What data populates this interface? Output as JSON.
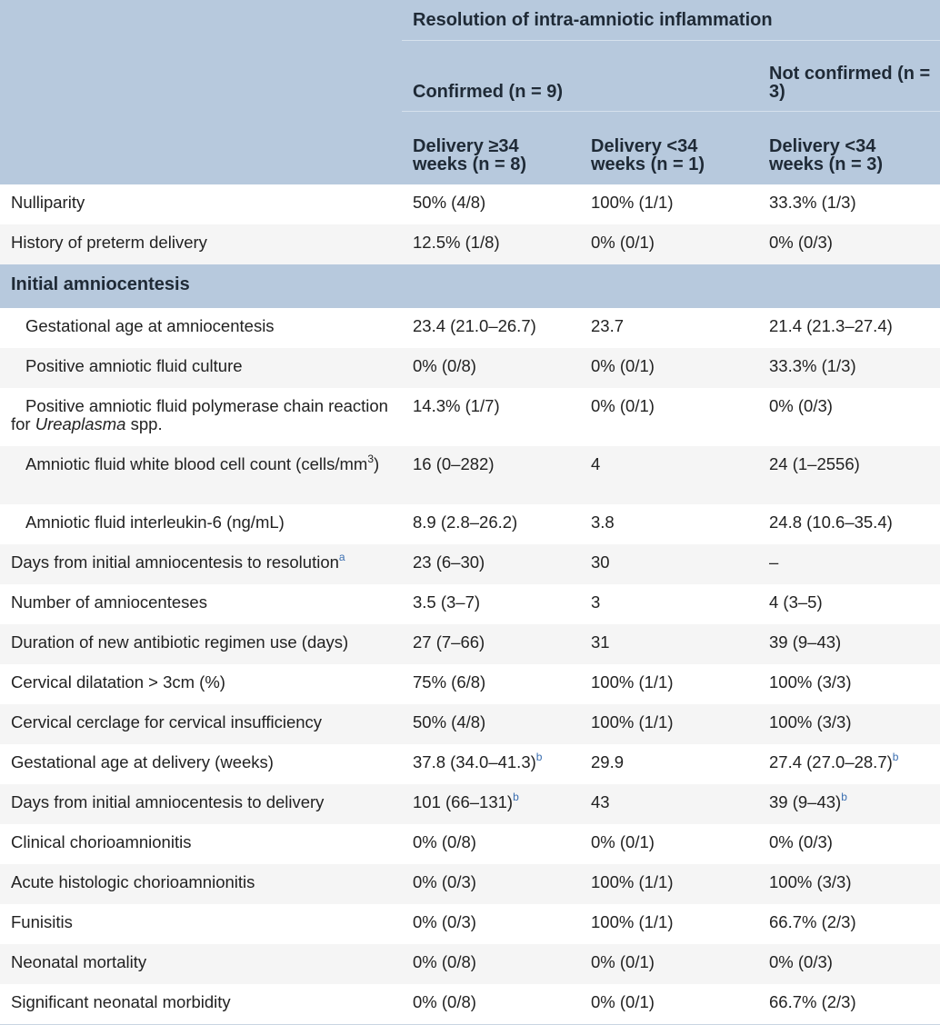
{
  "header": {
    "group_title": "Resolution of intra-amniotic inflammation",
    "confirmed_label": "Confirmed (n = 9)",
    "not_confirmed_label": "Not confirmed (n = 3)",
    "col1_label": "Delivery ≥34 weeks (n = 8)",
    "col2_label": "Delivery <34 weeks (n = 1)",
    "col3_label": "Delivery <34 weeks (n = 3)"
  },
  "rows": [
    {
      "label": "Nulliparity",
      "c1": "50% (4/8)",
      "c2": "100% (1/1)",
      "c3": "33.3% (1/3)"
    },
    {
      "label": "History of preterm delivery",
      "c1": "12.5% (1/8)",
      "c2": "0% (0/1)",
      "c3": "0% (0/3)"
    },
    {
      "section": "Initial amniocentesis"
    },
    {
      "label": "Gestational age at amniocentesis",
      "c1": "23.4 (21.0–26.7)",
      "c2": "23.7",
      "c3": "21.4 (21.3–27.4)"
    },
    {
      "label": "Positive amniotic fluid culture",
      "c1": "0% (0/8)",
      "c2": "0% (0/1)",
      "c3": "33.3% (1/3)"
    },
    {
      "label_a": "Positive amniotic fluid polymerase chain reaction for",
      "label_b": "Ureaplasma",
      "label_c": "spp.",
      "c1": "14.3% (1/7)",
      "c2": "0% (0/1)",
      "c3": "0% (0/3)"
    },
    {
      "label": "Amniotic fluid white blood cell count (cells/mm",
      "label_sup": "3",
      "label_end": ")",
      "c1": "16 (0–282)",
      "c2": "4",
      "c3": "24 (1–2556)"
    },
    {
      "label": "Amniotic fluid interleukin-6 (ng/mL)",
      "c1": "8.9 (2.8–26.2)",
      "c2": "3.8",
      "c3": "24.8 (10.6–35.4)"
    },
    {
      "label": "Days from initial amniocentesis to resolution",
      "label_note": "a",
      "c1": "23 (6–30)",
      "c2": "30",
      "c3": "–"
    },
    {
      "label": "Number of amniocenteses",
      "c1": "3.5 (3–7)",
      "c2": "3",
      "c3": "4 (3–5)"
    },
    {
      "label": "Duration of new antibiotic regimen use (days)",
      "c1": "27 (7–66)",
      "c2": "31",
      "c3": "39 (9–43)"
    },
    {
      "label": "Cervical dilatation > 3cm (%)",
      "c1": "75% (6/8)",
      "c2": "100% (1/1)",
      "c3": "100% (3/3)"
    },
    {
      "label": "Cervical cerclage for cervical insufficiency",
      "c1": "50% (4/8)",
      "c2": "100% (1/1)",
      "c3": "100% (3/3)"
    },
    {
      "label": "Gestational age at delivery (weeks)",
      "c1": "37.8 (34.0–41.3)",
      "c1_note": "b",
      "c2": "29.9",
      "c3": "27.4 (27.0–28.7)",
      "c3_note": "b"
    },
    {
      "label": "Days from initial amniocentesis to delivery",
      "c1": "101 (66–131)",
      "c1_note": "b",
      "c2": "43",
      "c3": "39 (9–43)",
      "c3_note": "b"
    },
    {
      "label": "Clinical chorioamnionitis",
      "c1": "0% (0/8)",
      "c2": "0% (0/1)",
      "c3": "0% (0/3)"
    },
    {
      "label": "Acute histologic chorioamnionitis",
      "c1": "0% (0/3)",
      "c2": "100% (1/1)",
      "c3": "100% (3/3)"
    },
    {
      "label": "Funisitis",
      "c1": "0% (0/3)",
      "c2": "100% (1/1)",
      "c3": "66.7% (2/3)"
    },
    {
      "label": "Neonatal mortality",
      "c1": "0% (0/8)",
      "c2": "0% (0/1)",
      "c3": "0% (0/3)"
    },
    {
      "label": "Significant neonatal morbidity",
      "c1": "0% (0/8)",
      "c2": "0% (0/1)",
      "c3": "66.7% (2/3)"
    }
  ],
  "colors": {
    "header_bg": "#b7c9dd",
    "stripe_bg": "#f5f5f5",
    "footnote_link": "#3a6eb0"
  }
}
